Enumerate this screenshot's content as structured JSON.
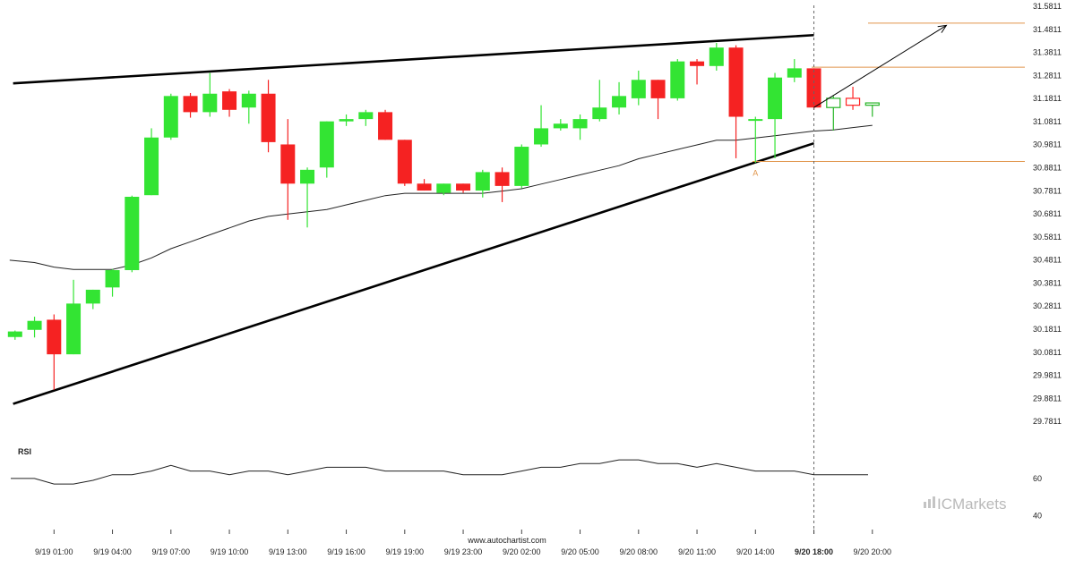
{
  "chart_data": [
    {
      "type": "candlestick",
      "title": "",
      "ylim": [
        29.7311,
        31.5811
      ],
      "y_ticks": [
        "31.5811",
        "31.4811",
        "31.3811",
        "31.2811",
        "31.1811",
        "31.0811",
        "30.9811",
        "30.8811",
        "30.7811",
        "30.6811",
        "30.5811",
        "30.4811",
        "30.3811",
        "30.2811",
        "30.1811",
        "30.0811",
        "29.9811",
        "29.8811",
        "29.7811"
      ],
      "x_ticks": [
        {
          "label": "9/19 01:00",
          "bar": 2
        },
        {
          "label": "9/19 04:00",
          "bar": 5
        },
        {
          "label": "9/19 07:00",
          "bar": 8
        },
        {
          "label": "9/19 10:00",
          "bar": 11
        },
        {
          "label": "9/19 13:00",
          "bar": 14
        },
        {
          "label": "9/19 16:00",
          "bar": 17
        },
        {
          "label": "9/19 19:00",
          "bar": 20
        },
        {
          "label": "9/19 23:00",
          "bar": 23
        },
        {
          "label": "9/20 02:00",
          "bar": 26
        },
        {
          "label": "9/20 05:00",
          "bar": 29
        },
        {
          "label": "9/20 08:00",
          "bar": 32
        },
        {
          "label": "9/20 11:00",
          "bar": 35
        },
        {
          "label": "9/20 14:00",
          "bar": 38
        },
        {
          "label": "9/20 18:00",
          "bar": 41,
          "bold": true
        },
        {
          "label": "9/20 20:00",
          "bar": 44
        }
      ],
      "candles": [
        {
          "o": 30.147,
          "h": 30.175,
          "l": 30.135,
          "c": 30.171
        },
        {
          "o": 30.178,
          "h": 30.235,
          "l": 30.145,
          "c": 30.217
        },
        {
          "o": 30.222,
          "h": 30.245,
          "l": 29.918,
          "c": 30.072
        },
        {
          "o": 30.072,
          "h": 30.395,
          "l": 30.072,
          "c": 30.292
        },
        {
          "o": 30.292,
          "h": 30.352,
          "l": 30.268,
          "c": 30.352
        },
        {
          "o": 30.362,
          "h": 30.442,
          "l": 30.322,
          "c": 30.437
        },
        {
          "o": 30.437,
          "h": 30.76,
          "l": 30.428,
          "c": 30.755
        },
        {
          "o": 30.762,
          "h": 31.052,
          "l": 30.762,
          "c": 31.012
        },
        {
          "o": 31.012,
          "h": 31.202,
          "l": 31.002,
          "c": 31.192
        },
        {
          "o": 31.192,
          "h": 31.205,
          "l": 31.098,
          "c": 31.122
        },
        {
          "o": 31.122,
          "h": 31.292,
          "l": 31.102,
          "c": 31.202
        },
        {
          "o": 31.212,
          "h": 31.222,
          "l": 31.102,
          "c": 31.132
        },
        {
          "o": 31.142,
          "h": 31.215,
          "l": 31.072,
          "c": 31.202
        },
        {
          "o": 31.202,
          "h": 31.262,
          "l": 30.948,
          "c": 30.992
        },
        {
          "o": 30.982,
          "h": 31.092,
          "l": 30.655,
          "c": 30.812
        },
        {
          "o": 30.812,
          "h": 30.882,
          "l": 30.622,
          "c": 30.872
        },
        {
          "o": 30.882,
          "h": 31.082,
          "l": 30.838,
          "c": 31.082
        },
        {
          "o": 31.082,
          "h": 31.112,
          "l": 31.062,
          "c": 31.092
        },
        {
          "o": 31.092,
          "h": 31.132,
          "l": 31.062,
          "c": 31.122
        },
        {
          "o": 31.122,
          "h": 31.132,
          "l": 31.002,
          "c": 31.002
        },
        {
          "o": 31.002,
          "h": 31.002,
          "l": 30.802,
          "c": 30.812
        },
        {
          "o": 30.812,
          "h": 30.832,
          "l": 30.782,
          "c": 30.782
        },
        {
          "o": 30.772,
          "h": 30.812,
          "l": 30.762,
          "c": 30.812
        },
        {
          "o": 30.812,
          "h": 30.812,
          "l": 30.772,
          "c": 30.782
        },
        {
          "o": 30.782,
          "h": 30.872,
          "l": 30.752,
          "c": 30.862
        },
        {
          "o": 30.862,
          "h": 30.882,
          "l": 30.732,
          "c": 30.802
        },
        {
          "o": 30.802,
          "h": 30.982,
          "l": 30.792,
          "c": 30.972
        },
        {
          "o": 30.982,
          "h": 31.152,
          "l": 30.972,
          "c": 31.052
        },
        {
          "o": 31.052,
          "h": 31.092,
          "l": 31.042,
          "c": 31.072
        },
        {
          "o": 31.052,
          "h": 31.112,
          "l": 31.002,
          "c": 31.092
        },
        {
          "o": 31.092,
          "h": 31.262,
          "l": 31.082,
          "c": 31.142
        },
        {
          "o": 31.142,
          "h": 31.252,
          "l": 31.112,
          "c": 31.192
        },
        {
          "o": 31.182,
          "h": 31.302,
          "l": 31.152,
          "c": 31.262
        },
        {
          "o": 31.262,
          "h": 31.262,
          "l": 31.092,
          "c": 31.182
        },
        {
          "o": 31.182,
          "h": 31.352,
          "l": 31.172,
          "c": 31.342
        },
        {
          "o": 31.342,
          "h": 31.352,
          "l": 31.242,
          "c": 31.322
        },
        {
          "o": 31.322,
          "h": 31.422,
          "l": 31.302,
          "c": 31.402
        },
        {
          "o": 31.402,
          "h": 31.412,
          "l": 30.922,
          "c": 31.102
        },
        {
          "o": 31.092,
          "h": 31.102,
          "l": 30.902,
          "c": 31.092
        },
        {
          "o": 31.092,
          "h": 31.292,
          "l": 30.922,
          "c": 31.272
        },
        {
          "o": 31.272,
          "h": 31.352,
          "l": 31.252,
          "c": 31.312
        },
        {
          "o": 31.312,
          "h": 31.312,
          "l": 31.132,
          "c": 31.142
        },
        {
          "o": 31.142,
          "h": 31.192,
          "l": 31.042,
          "c": 31.182,
          "hollow": true
        },
        {
          "o": 31.182,
          "h": 31.232,
          "l": 31.132,
          "c": 31.152,
          "hollow": true
        },
        {
          "o": 31.152,
          "h": 31.162,
          "l": 31.102,
          "c": 31.162,
          "hollow": true
        }
      ],
      "moving_average": [
        30.48,
        30.47,
        30.45,
        30.44,
        30.44,
        30.44,
        30.46,
        30.49,
        30.53,
        30.56,
        30.59,
        30.62,
        30.65,
        30.67,
        30.68,
        30.69,
        30.7,
        30.72,
        30.74,
        30.76,
        30.77,
        30.77,
        30.77,
        30.77,
        30.77,
        30.78,
        30.79,
        30.81,
        30.83,
        30.85,
        30.87,
        30.89,
        30.92,
        30.94,
        30.96,
        30.98,
        31.0,
        31.0,
        31.01,
        31.02,
        31.03,
        31.04,
        31.045,
        31.055,
        31.065
      ],
      "trendlines": [
        {
          "name": "upper-channel-line",
          "from": {
            "bar": -0.1,
            "value": 31.247
          },
          "to": {
            "bar": 41,
            "value": 31.456
          }
        },
        {
          "name": "lower-channel-line",
          "from": {
            "bar": -0.1,
            "value": 29.857
          },
          "to": {
            "bar": 41,
            "value": 30.987
          }
        }
      ],
      "horizontal_levels": [
        {
          "name": "target-level",
          "value": 31.508,
          "from_bar": 44,
          "to_bar": 58
        },
        {
          "name": "resistance-level",
          "value": 31.317,
          "from_bar": 41,
          "to_bar": 58
        },
        {
          "name": "support-level",
          "value": 30.908,
          "from_bar": 38,
          "to_bar": 58
        }
      ],
      "forecast_arrow": {
        "from": {
          "bar": 41,
          "value": 31.142
        },
        "to": {
          "bar": 47.8,
          "value": 31.498
        }
      },
      "point_label": {
        "text": "A",
        "bar": 38,
        "value": 30.881
      },
      "current_time_bar": 41,
      "colors": {
        "up": "#33e433",
        "down": "#f52222",
        "hollow_up": "#24b424",
        "hollow_down": "#ff2222",
        "level": "#e0954a",
        "trend": "#000000",
        "ma": "#222222"
      }
    },
    {
      "type": "line",
      "title": "RSI",
      "ylim": [
        34,
        71
      ],
      "y_ticks": [
        "60",
        "40"
      ],
      "values": [
        60,
        60,
        57,
        57,
        59,
        62,
        62,
        64,
        67,
        64,
        64,
        62,
        64,
        64,
        62,
        64,
        66,
        66,
        66,
        64,
        64,
        64,
        64,
        62,
        62,
        62,
        64,
        66,
        66,
        68,
        68,
        70,
        70,
        68,
        68,
        66,
        68,
        66,
        64,
        64,
        64,
        62,
        62,
        62,
        62
      ]
    }
  ],
  "footer": {
    "site": "www.autochartist.com",
    "brand": "ICMarkets"
  }
}
